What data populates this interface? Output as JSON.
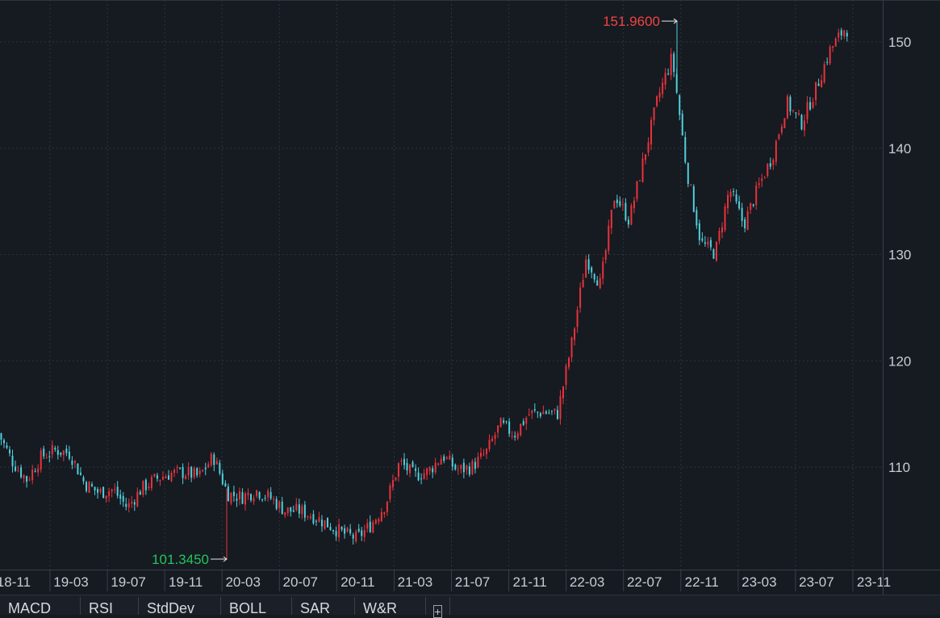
{
  "chart_data": {
    "type": "candlestick",
    "y_ticks": [
      110,
      120,
      130,
      140,
      150
    ],
    "ylim": [
      100.5,
      155.5
    ],
    "x_ticks": [
      "18-11",
      "19-03",
      "19-07",
      "19-11",
      "20-03",
      "20-07",
      "20-11",
      "21-03",
      "21-07",
      "21-11",
      "22-03",
      "22-07",
      "22-11",
      "23-03",
      "23-07",
      "23-11"
    ],
    "grid": true,
    "colors": {
      "up": "#e8333c",
      "down": "#4fd0dc",
      "high_label": "#ef4444",
      "low_label": "#22c55e",
      "background": "#161a21",
      "grid": "#2f343c"
    },
    "annotations": {
      "high": {
        "label": "151.9600",
        "value": 151.96,
        "date": "22-10"
      },
      "low": {
        "label": "101.3450",
        "value": 101.345,
        "date": "20-03"
      }
    },
    "series": [
      {
        "values": [
          [
            "18-11",
            113.2
          ],
          [
            "18-12",
            110.5
          ],
          [
            "19-01",
            108.8
          ],
          [
            "19-02",
            111.0
          ],
          [
            "19-03",
            111.6
          ],
          [
            "19-04",
            111.3
          ],
          [
            "19-05",
            108.5
          ],
          [
            "19-06",
            107.6
          ],
          [
            "19-07",
            107.9
          ],
          [
            "19-08",
            106.2
          ],
          [
            "19-09",
            108.0
          ],
          [
            "19-10",
            108.9
          ],
          [
            "19-11",
            109.4
          ],
          [
            "19-12",
            109.5
          ],
          [
            "20-01",
            109.1
          ],
          [
            "20-02",
            111.0
          ],
          [
            "20-03",
            107.5
          ],
          [
            "20-04",
            107.2
          ],
          [
            "20-05",
            107.8
          ],
          [
            "20-06",
            107.1
          ],
          [
            "20-07",
            105.9
          ],
          [
            "20-08",
            105.9
          ],
          [
            "20-09",
            105.4
          ],
          [
            "20-10",
            104.6
          ],
          [
            "20-11",
            103.8
          ],
          [
            "20-12",
            103.3
          ],
          [
            "21-01",
            104.6
          ],
          [
            "21-02",
            106.5
          ],
          [
            "21-03",
            110.5
          ],
          [
            "21-04",
            109.2
          ],
          [
            "21-05",
            109.6
          ],
          [
            "21-06",
            111.1
          ],
          [
            "21-07",
            109.7
          ],
          [
            "21-08",
            110.0
          ],
          [
            "21-09",
            111.3
          ],
          [
            "21-10",
            114.0
          ],
          [
            "21-11",
            113.1
          ],
          [
            "21-12",
            115.0
          ],
          [
            "22-01",
            115.2
          ],
          [
            "22-02",
            115.0
          ],
          [
            "22-03",
            121.7
          ],
          [
            "22-04",
            129.7
          ],
          [
            "22-05",
            127.2
          ],
          [
            "22-06",
            135.7
          ],
          [
            "22-07",
            133.2
          ],
          [
            "22-08",
            138.9
          ],
          [
            "22-09",
            144.7
          ],
          [
            "22-10",
            148.6
          ],
          [
            "22-11",
            138.1
          ],
          [
            "22-12",
            131.1
          ],
          [
            "23-01",
            130.1
          ],
          [
            "23-02",
            136.2
          ],
          [
            "23-03",
            132.8
          ],
          [
            "23-04",
            136.3
          ],
          [
            "23-05",
            139.3
          ],
          [
            "23-06",
            144.3
          ],
          [
            "23-07",
            142.3
          ],
          [
            "23-08",
            145.5
          ],
          [
            "23-09",
            149.2
          ],
          [
            "23-10",
            151.2
          ]
        ]
      }
    ]
  },
  "tabs": {
    "macd": "MACD",
    "rsi": "RSI",
    "stddev": "StdDev",
    "boll": "BOLL",
    "sar": "SAR",
    "wr": "W&R",
    "add": "+"
  }
}
